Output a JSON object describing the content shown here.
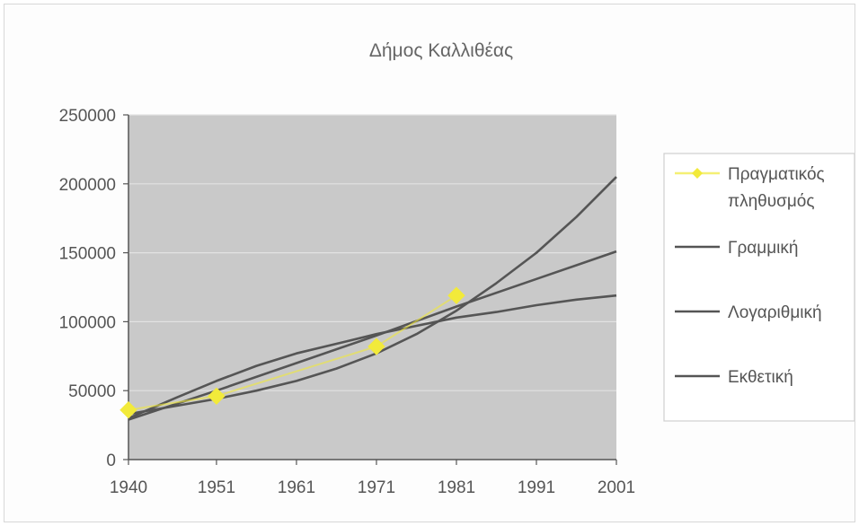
{
  "chart_data": {
    "type": "line",
    "title": "Δήμος Καλλιθέας",
    "x_ticks": [
      1940,
      1951,
      1961,
      1971,
      1981,
      1991,
      2001
    ],
    "xlim": [
      1940,
      2001
    ],
    "ylim": [
      0,
      250000
    ],
    "y_ticks": [
      0,
      50000,
      100000,
      150000,
      200000,
      250000
    ],
    "y_tick_labels": [
      "0",
      "50000",
      "100000",
      "150000",
      "200000",
      "250000"
    ],
    "grid": true,
    "legend_position": "right",
    "series": [
      {
        "name": "Πραγματικός πληθυσμός",
        "kind": "points",
        "color": "#f2ea3a",
        "points": [
          [
            1940,
            36000
          ],
          [
            1951,
            46000
          ],
          [
            1971,
            82000
          ],
          [
            1981,
            119000
          ]
        ]
      },
      {
        "name": "Γραμμική",
        "kind": "line",
        "color": "#555555",
        "points": [
          [
            1940,
            29000
          ],
          [
            1951,
            50000
          ],
          [
            1961,
            70000
          ],
          [
            1971,
            90000
          ],
          [
            1981,
            111000
          ],
          [
            1991,
            131000
          ],
          [
            2001,
            151000
          ]
        ]
      },
      {
        "name": "Λογαριθμική",
        "kind": "line",
        "color": "#555555",
        "points": [
          [
            1940,
            30000
          ],
          [
            1946,
            45000
          ],
          [
            1951,
            57000
          ],
          [
            1956,
            68000
          ],
          [
            1961,
            77000
          ],
          [
            1966,
            84000
          ],
          [
            1971,
            91000
          ],
          [
            1976,
            97000
          ],
          [
            1981,
            103000
          ],
          [
            1986,
            107000
          ],
          [
            1991,
            112000
          ],
          [
            1996,
            116000
          ],
          [
            2001,
            119000
          ]
        ]
      },
      {
        "name": "Εκθετική",
        "kind": "line",
        "color": "#555555",
        "points": [
          [
            1940,
            33000
          ],
          [
            1945,
            38000
          ],
          [
            1951,
            44000
          ],
          [
            1956,
            50000
          ],
          [
            1961,
            57000
          ],
          [
            1966,
            66000
          ],
          [
            1971,
            77000
          ],
          [
            1976,
            91000
          ],
          [
            1981,
            108000
          ],
          [
            1986,
            128000
          ],
          [
            1991,
            150000
          ],
          [
            1996,
            176000
          ],
          [
            2001,
            205000
          ]
        ]
      }
    ],
    "legend": [
      {
        "label": "Πραγματικός πληθυσμός",
        "lines": [
          "Πραγματικός",
          "πληθυσμός"
        ],
        "symbol": "marker"
      },
      {
        "label": "Γραμμική",
        "lines": [
          "Γραμμική"
        ],
        "symbol": "line"
      },
      {
        "label": "Λογαριθμική",
        "lines": [
          "Λογαριθμική"
        ],
        "symbol": "line"
      },
      {
        "label": "Εκθετική",
        "lines": [
          "Εκθετική"
        ],
        "symbol": "line"
      }
    ]
  },
  "colors": {
    "plot_background": "#c9c9c9",
    "gridline": "#e2e2e2",
    "axis": "#555555",
    "marker": "#f2ea3a",
    "trendline": "#555555"
  }
}
